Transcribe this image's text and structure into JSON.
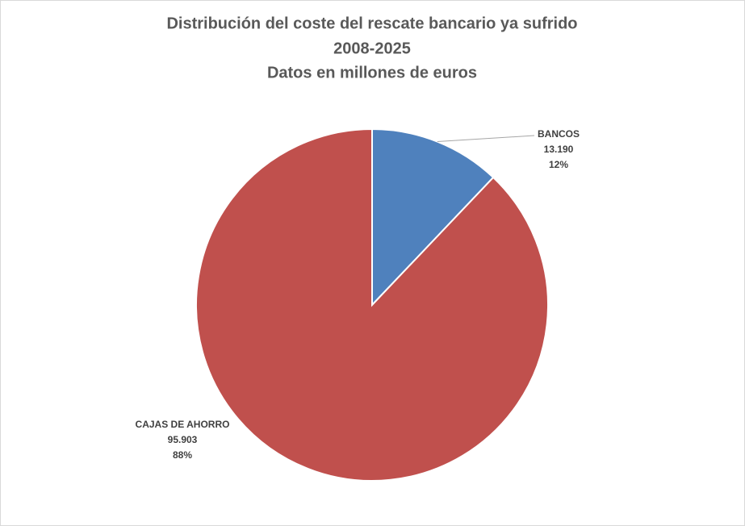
{
  "chart_data": {
    "type": "pie",
    "title": [
      "Distribución del coste del rescate bancario ya sufrido",
      "2008-2025",
      "Datos en millones de euros"
    ],
    "categories": [
      "BANCOS",
      "CAJAS DE AHORRO"
    ],
    "values": [
      13190,
      95903
    ],
    "value_labels": [
      "13.190",
      "95.903"
    ],
    "percentages": [
      12,
      88
    ],
    "percentage_labels": [
      "12%",
      "88%"
    ],
    "colors": [
      "#4f81bd",
      "#c0504d"
    ]
  }
}
